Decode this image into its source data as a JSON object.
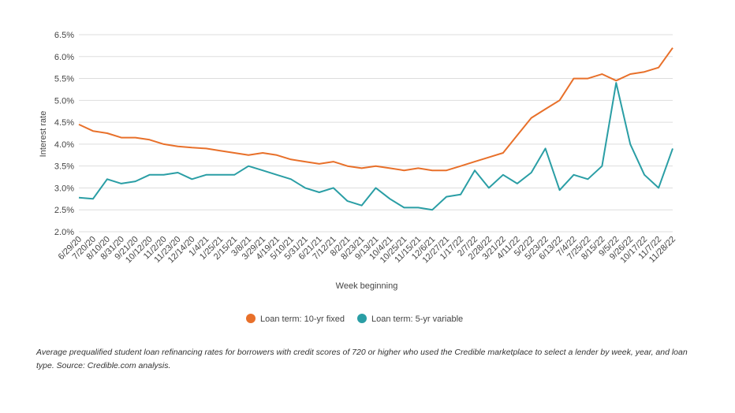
{
  "chart_data": {
    "type": "line",
    "y_label": "Interest rate",
    "x_label": "Week beginning",
    "caption": "Average prequalified student loan refinancing rates for borrowers with credit scores of 720 or higher who used the Credible marketplace to select a lender by week, year, and loan type. Source: Credible.com analysis.",
    "categories": [
      "6/29/20",
      "7/20/20",
      "8/10/20",
      "8/31/20",
      "9/21/20",
      "10/12/20",
      "11/2/20",
      "11/23/20",
      "12/14/20",
      "1/4/21",
      "1/25/21",
      "2/15/21",
      "3/8/21",
      "3/29/21",
      "4/19/21",
      "5/10/21",
      "5/31/21",
      "6/21/21",
      "7/12/21",
      "8/2/21",
      "8/23/21",
      "9/13/21",
      "10/4/21",
      "10/25/21",
      "11/15/21",
      "12/6/21",
      "12/27/21",
      "1/17/22",
      "2/7/22",
      "2/28/22",
      "3/21/22",
      "4/11/22",
      "5/2/22",
      "5/23/22",
      "6/13/22",
      "7/4/22",
      "7/25/22",
      "8/15/22",
      "9/5/22",
      "9/26/22",
      "10/17/22",
      "11/7/22",
      "11/28/22"
    ],
    "series": [
      {
        "name": "Loan term: 10-yr fixed",
        "color": "#e8702a",
        "values": [
          4.45,
          4.3,
          4.25,
          4.15,
          4.15,
          4.1,
          4.0,
          3.95,
          3.92,
          3.9,
          3.85,
          3.8,
          3.75,
          3.8,
          3.75,
          3.65,
          3.6,
          3.55,
          3.6,
          3.5,
          3.45,
          3.5,
          3.45,
          3.4,
          3.45,
          3.4,
          3.4,
          3.5,
          3.6,
          3.7,
          3.8,
          4.2,
          4.6,
          4.8,
          5.0,
          5.5,
          5.5,
          5.6,
          5.45,
          5.6,
          5.65,
          5.75,
          6.2
        ]
      },
      {
        "name": "Loan term: 5-yr variable",
        "color": "#2a9ea5",
        "values": [
          2.78,
          2.75,
          3.2,
          3.1,
          3.15,
          3.3,
          3.3,
          3.35,
          3.2,
          3.3,
          3.3,
          3.3,
          3.5,
          3.4,
          3.3,
          3.2,
          3.0,
          2.9,
          3.0,
          2.7,
          2.6,
          3.0,
          2.75,
          2.55,
          2.55,
          2.5,
          2.8,
          2.85,
          3.4,
          3.0,
          3.3,
          3.1,
          3.35,
          3.9,
          2.95,
          3.3,
          3.2,
          3.5,
          5.4,
          4.0,
          3.3,
          3.0,
          3.9
        ]
      }
    ],
    "ylim": [
      2.0,
      6.5
    ],
    "yticks": [
      {
        "value": 2.0,
        "label": "2.0%"
      },
      {
        "value": 2.5,
        "label": "2.5%"
      },
      {
        "value": 3.0,
        "label": "3.0%"
      },
      {
        "value": 3.5,
        "label": "3.5%"
      },
      {
        "value": 4.0,
        "label": "4.0%"
      },
      {
        "value": 4.5,
        "label": "4.5%"
      },
      {
        "value": 5.0,
        "label": "5.0%"
      },
      {
        "value": 5.5,
        "label": "5.5%"
      },
      {
        "value": 6.0,
        "label": "6.0%"
      },
      {
        "value": 6.5,
        "label": "6.5%"
      }
    ],
    "grid": true
  }
}
